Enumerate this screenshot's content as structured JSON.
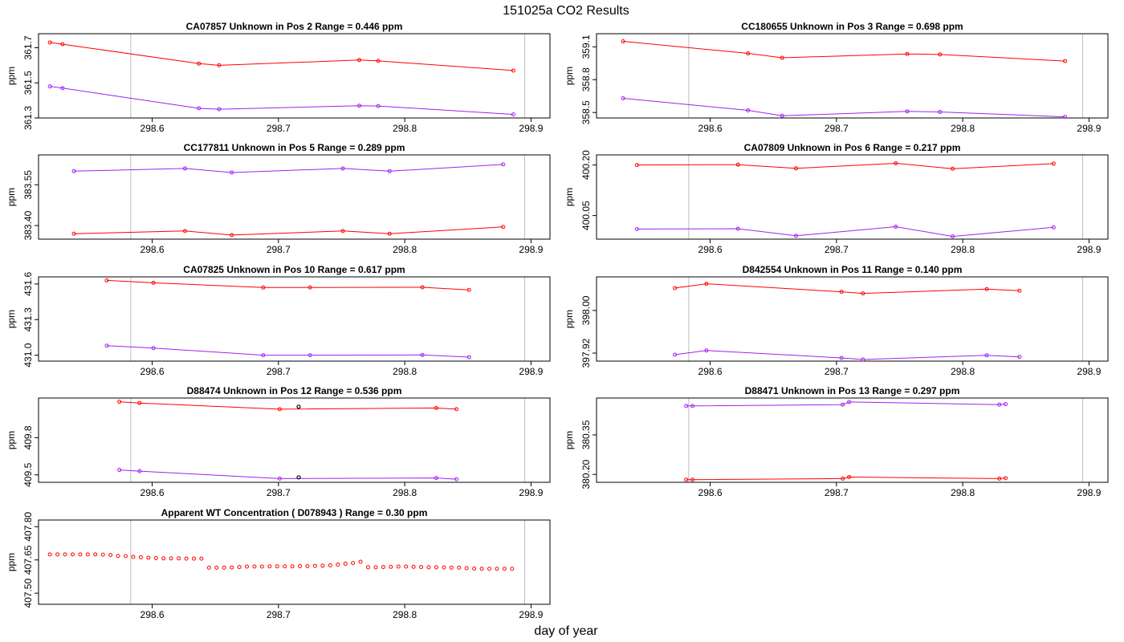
{
  "figure": {
    "title": "151025a  CO2 Results",
    "xlabel": "day of year",
    "ylabel": "ppm"
  },
  "colors": {
    "red": "#ff0000",
    "purple": "#a020f0",
    "gridline": "#bebebe",
    "black": "#000000"
  },
  "chart_data": [
    {
      "type": "line",
      "title": "CA07857    Unknown in Pos 2         Range =  0.446 ppm",
      "xlim": [
        298.51,
        298.915
      ],
      "ylim": [
        361.3,
        361.78
      ],
      "xticks": [
        "298.6",
        "298.7",
        "298.8",
        "298.9"
      ],
      "xtick_values": [
        298.6,
        298.7,
        298.8,
        298.9
      ],
      "yticks": [
        "361.3",
        "361.5",
        "361.7"
      ],
      "ytick_values": [
        361.3,
        361.5,
        361.7
      ],
      "vlines": [
        298.583,
        298.895
      ],
      "series": [
        {
          "name": "red",
          "color": "red",
          "markers_only": false,
          "x": [
            298.519,
            298.529,
            298.637,
            298.653,
            298.764,
            298.779,
            298.886
          ],
          "y": [
            361.73,
            361.72,
            361.61,
            361.6,
            361.63,
            361.625,
            361.57
          ]
        },
        {
          "name": "purple",
          "color": "purple",
          "markers_only": false,
          "x": [
            298.519,
            298.529,
            298.637,
            298.653,
            298.764,
            298.779,
            298.886
          ],
          "y": [
            361.48,
            361.47,
            361.355,
            361.35,
            361.37,
            361.368,
            361.32
          ]
        }
      ],
      "extra_points": []
    },
    {
      "type": "line",
      "title": "CC180655    Unknown in Pos 3         Range =  0.698 ppm",
      "xlim": [
        298.51,
        298.915
      ],
      "ylim": [
        358.45,
        359.22
      ],
      "xticks": [
        "298.6",
        "298.7",
        "298.8",
        "298.9"
      ],
      "xtick_values": [
        298.6,
        298.7,
        298.8,
        298.9
      ],
      "yticks": [
        "358.5",
        "358.8",
        "359.1"
      ],
      "ytick_values": [
        358.5,
        358.8,
        359.1
      ],
      "vlines": [
        298.583,
        298.895
      ],
      "series": [
        {
          "name": "red",
          "color": "red",
          "markers_only": false,
          "x": [
            298.531,
            298.63,
            298.657,
            298.756,
            298.782,
            298.881
          ],
          "y": [
            359.15,
            359.04,
            359.0,
            359.035,
            359.03,
            358.97
          ]
        },
        {
          "name": "purple",
          "color": "purple",
          "markers_only": false,
          "x": [
            298.531,
            298.63,
            298.657,
            298.756,
            298.782,
            298.881
          ],
          "y": [
            358.63,
            358.52,
            358.47,
            358.51,
            358.505,
            358.46
          ]
        }
      ],
      "extra_points": []
    },
    {
      "type": "line",
      "title": "CC177811    Unknown in Pos 5         Range =  0.289 ppm",
      "xlim": [
        298.51,
        298.915
      ],
      "ylim": [
        383.35,
        383.66
      ],
      "xticks": [
        "298.6",
        "298.7",
        "298.8",
        "298.9"
      ],
      "xtick_values": [
        298.6,
        298.7,
        298.8,
        298.9
      ],
      "yticks": [
        "383.40",
        "383.55"
      ],
      "ytick_values": [
        383.4,
        383.55
      ],
      "vlines": [
        298.583,
        298.895
      ],
      "series": [
        {
          "name": "purple",
          "color": "purple",
          "markers_only": false,
          "x": [
            298.538,
            298.626,
            298.663,
            298.751,
            298.788,
            298.878
          ],
          "y": [
            383.6,
            383.61,
            383.595,
            383.61,
            383.6,
            383.625
          ]
        },
        {
          "name": "red",
          "color": "red",
          "markers_only": false,
          "x": [
            298.538,
            298.626,
            298.663,
            298.751,
            298.788,
            298.878
          ],
          "y": [
            383.37,
            383.38,
            383.365,
            383.38,
            383.37,
            383.395
          ]
        }
      ],
      "extra_points": []
    },
    {
      "type": "line",
      "title": "CA07809    Unknown in Pos 6         Range =  0.217 ppm",
      "xlim": [
        298.51,
        298.915
      ],
      "ylim": [
        399.98,
        400.23
      ],
      "xticks": [
        "298.6",
        "298.7",
        "298.8",
        "298.9"
      ],
      "xtick_values": [
        298.6,
        298.7,
        298.8,
        298.9
      ],
      "yticks": [
        "400.05",
        "400.20"
      ],
      "ytick_values": [
        400.05,
        400.2
      ],
      "vlines": [
        298.583,
        298.895
      ],
      "series": [
        {
          "name": "red",
          "color": "red",
          "markers_only": false,
          "x": [
            298.542,
            298.622,
            298.668,
            298.747,
            298.792,
            298.872
          ],
          "y": [
            400.2,
            400.201,
            400.19,
            400.205,
            400.189,
            400.204
          ]
        },
        {
          "name": "purple",
          "color": "purple",
          "markers_only": false,
          "x": [
            298.542,
            298.622,
            298.668,
            298.747,
            298.792,
            298.872
          ],
          "y": [
            400.01,
            400.011,
            399.99,
            400.017,
            399.988,
            400.015
          ]
        }
      ],
      "extra_points": []
    },
    {
      "type": "line",
      "title": "CA07825    Unknown in Pos 10         Range =  0.617 ppm",
      "xlim": [
        298.51,
        298.915
      ],
      "ylim": [
        430.95,
        431.66
      ],
      "xticks": [
        "298.6",
        "298.7",
        "298.8",
        "298.9"
      ],
      "xtick_values": [
        298.6,
        298.7,
        298.8,
        298.9
      ],
      "yticks": [
        "431.0",
        "431.3",
        "431.6"
      ],
      "ytick_values": [
        431.0,
        431.3,
        431.6
      ],
      "vlines": [
        298.583,
        298.895
      ],
      "series": [
        {
          "name": "red",
          "color": "red",
          "markers_only": false,
          "x": [
            298.564,
            298.601,
            298.688,
            298.725,
            298.814,
            298.851
          ],
          "y": [
            431.63,
            431.61,
            431.57,
            431.571,
            431.572,
            431.55
          ]
        },
        {
          "name": "purple",
          "color": "purple",
          "markers_only": false,
          "x": [
            298.564,
            298.601,
            298.688,
            298.725,
            298.814,
            298.851
          ],
          "y": [
            431.08,
            431.06,
            431.0,
            431.0,
            431.002,
            430.984
          ]
        }
      ],
      "extra_points": []
    },
    {
      "type": "line",
      "title": "D842554    Unknown in Pos 11         Range =  0.140 ppm",
      "xlim": [
        298.51,
        298.915
      ],
      "ylim": [
        397.905,
        398.063
      ],
      "xticks": [
        "298.6",
        "298.7",
        "298.8",
        "298.9"
      ],
      "xtick_values": [
        298.6,
        298.7,
        298.8,
        298.9
      ],
      "yticks": [
        "397.92",
        "398.00"
      ],
      "ytick_values": [
        397.92,
        398.0
      ],
      "vlines": [
        298.583,
        298.895
      ],
      "series": [
        {
          "name": "red",
          "color": "red",
          "markers_only": false,
          "x": [
            298.572,
            298.597,
            298.704,
            298.721,
            298.819,
            298.845
          ],
          "y": [
            398.042,
            398.05,
            398.035,
            398.032,
            398.04,
            398.037
          ]
        },
        {
          "name": "purple",
          "color": "purple",
          "markers_only": false,
          "x": [
            298.572,
            298.597,
            298.704,
            298.721,
            298.819,
            298.845
          ],
          "y": [
            397.917,
            397.925,
            397.911,
            397.908,
            397.916,
            397.913
          ]
        }
      ],
      "extra_points": []
    },
    {
      "type": "line",
      "title": "D88474    Unknown in Pos 12         Range =  0.536 ppm",
      "xlim": [
        298.51,
        298.915
      ],
      "ylim": [
        409.44,
        410.12
      ],
      "xticks": [
        "298.6",
        "298.7",
        "298.8",
        "298.9"
      ],
      "xtick_values": [
        298.6,
        298.7,
        298.8,
        298.9
      ],
      "yticks": [
        "409.5",
        "409.8"
      ],
      "ytick_values": [
        409.5,
        409.8
      ],
      "vlines": [
        298.583,
        298.895
      ],
      "series": [
        {
          "name": "red",
          "color": "red",
          "markers_only": false,
          "x": [
            298.574,
            298.59,
            298.701,
            298.825,
            298.841
          ],
          "y": [
            410.09,
            410.08,
            410.03,
            410.04,
            410.03
          ]
        },
        {
          "name": "purple",
          "color": "purple",
          "markers_only": false,
          "x": [
            298.574,
            298.59,
            298.701,
            298.825,
            298.841
          ],
          "y": [
            409.54,
            409.53,
            409.47,
            409.475,
            409.465
          ]
        }
      ],
      "extra_points": [
        {
          "x": 298.716,
          "y": 410.05,
          "color": "black"
        },
        {
          "x": 298.716,
          "y": 409.48,
          "color": "black"
        }
      ]
    },
    {
      "type": "line",
      "title": "D88471    Unknown in Pos 13         Range =  0.297 ppm",
      "xlim": [
        298.51,
        298.915
      ],
      "ylim": [
        380.17,
        380.49
      ],
      "xticks": [
        "298.6",
        "298.7",
        "298.8",
        "298.9"
      ],
      "xtick_values": [
        298.6,
        298.7,
        298.8,
        298.9
      ],
      "yticks": [
        "380.20",
        "380.35"
      ],
      "ytick_values": [
        380.2,
        380.35
      ],
      "vlines": [
        298.583,
        298.895
      ],
      "series": [
        {
          "name": "purple",
          "color": "purple",
          "markers_only": false,
          "x": [
            298.581,
            298.586,
            298.705,
            298.71,
            298.829,
            298.834
          ],
          "y": [
            380.46,
            380.46,
            380.465,
            380.475,
            380.465,
            380.467
          ]
        },
        {
          "name": "red",
          "color": "red",
          "markers_only": false,
          "x": [
            298.581,
            298.586,
            298.705,
            298.71,
            298.829,
            298.834
          ],
          "y": [
            380.18,
            380.18,
            380.184,
            380.19,
            380.184,
            380.186
          ]
        }
      ],
      "extra_points": []
    },
    {
      "type": "scatter",
      "title": "Apparent WT Concentration ( D078943 )         Range = 0.30 ppm",
      "xlim": [
        298.51,
        298.915
      ],
      "ylim": [
        407.45,
        407.83
      ],
      "xticks": [
        "298.6",
        "298.7",
        "298.8",
        "298.9"
      ],
      "xtick_values": [
        298.6,
        298.7,
        298.8,
        298.9
      ],
      "yticks": [
        "407.50",
        "407.65",
        "407.80"
      ],
      "ytick_values": [
        407.5,
        407.65,
        407.8
      ],
      "vlines": [
        298.583,
        298.895
      ],
      "series": [
        {
          "name": "red",
          "color": "red",
          "markers_only": true,
          "x": [
            298.519,
            298.525,
            298.531,
            298.537,
            298.543,
            298.549,
            298.555,
            298.561,
            298.567,
            298.573,
            298.579,
            298.585,
            298.591,
            298.597,
            298.603,
            298.609,
            298.615,
            298.621,
            298.627,
            298.633,
            298.639,
            298.645,
            298.651,
            298.657,
            298.663,
            298.669,
            298.675,
            298.681,
            298.687,
            298.693,
            298.699,
            298.705,
            298.711,
            298.717,
            298.723,
            298.729,
            298.735,
            298.741,
            298.747,
            298.753,
            298.759,
            298.765,
            298.771,
            298.777,
            298.783,
            298.789,
            298.795,
            298.801,
            298.807,
            298.813,
            298.819,
            298.825,
            298.831,
            298.837,
            298.843,
            298.849,
            298.855,
            298.861,
            298.867,
            298.873,
            298.879,
            298.885
          ],
          "y": [
            407.675,
            407.675,
            407.675,
            407.675,
            407.675,
            407.675,
            407.675,
            407.674,
            407.672,
            407.668,
            407.667,
            407.664,
            407.662,
            407.66,
            407.658,
            407.657,
            407.657,
            407.657,
            407.656,
            407.656,
            407.656,
            407.615,
            407.615,
            407.615,
            407.616,
            407.618,
            407.62,
            407.62,
            407.62,
            407.621,
            407.621,
            407.621,
            407.621,
            407.622,
            407.622,
            407.623,
            407.624,
            407.626,
            407.629,
            407.633,
            407.636,
            407.642,
            407.617,
            407.617,
            407.618,
            407.619,
            407.62,
            407.62,
            407.619,
            407.618,
            407.617,
            407.617,
            407.616,
            407.615,
            407.615,
            407.613,
            407.611,
            407.61,
            407.61,
            407.61,
            407.61,
            407.61
          ]
        }
      ],
      "extra_points": []
    }
  ]
}
